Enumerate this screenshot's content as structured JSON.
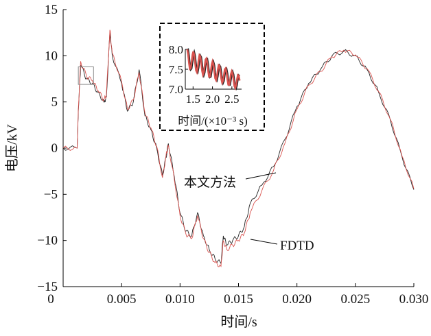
{
  "chart_data": {
    "type": "line",
    "xlabel": "时间/s",
    "ylabel": "电压/kV",
    "xlim": [
      0,
      0.03
    ],
    "ylim": [
      -15,
      15
    ],
    "x_ticks": [
      "0",
      "0.005",
      "0.010",
      "0.015",
      "0.020",
      "0.025",
      "0.030"
    ],
    "y_ticks": [
      "15",
      "10",
      "5",
      "0",
      "−5",
      "−10",
      "−15"
    ],
    "colors": {
      "series_a": "#222222",
      "series_b": "#d9534f",
      "axis": "#000000"
    },
    "series": [
      {
        "name": "本文方法",
        "x": [
          0,
          0.0012,
          0.0013,
          0.0015,
          0.002,
          0.0025,
          0.003,
          0.0035,
          0.0037,
          0.004,
          0.0042,
          0.005,
          0.0055,
          0.006,
          0.0065,
          0.007,
          0.0075,
          0.008,
          0.0085,
          0.0088,
          0.009,
          0.0095,
          0.01,
          0.0105,
          0.011,
          0.0115,
          0.012,
          0.0125,
          0.013,
          0.0135,
          0.0137,
          0.014,
          0.0145,
          0.015,
          0.0155,
          0.016,
          0.017,
          0.018,
          0.019,
          0.02,
          0.021,
          0.022,
          0.023,
          0.024,
          0.025,
          0.026,
          0.027,
          0.028,
          0.029,
          0.03
        ],
        "values": [
          0,
          0,
          4.0,
          9.0,
          7.5,
          7.0,
          6.0,
          5.0,
          5.5,
          12.5,
          10.0,
          7.0,
          4.0,
          5.0,
          8.5,
          3.5,
          2.0,
          0.0,
          -3.0,
          -1.0,
          0.5,
          -3.0,
          -7.0,
          -9.0,
          -9.5,
          -7.0,
          -9.5,
          -11.0,
          -12.0,
          -12.5,
          -9.5,
          -10.5,
          -10.0,
          -9.5,
          -8.5,
          -6.0,
          -4.0,
          -2.0,
          1.0,
          4.5,
          7.0,
          8.5,
          10.0,
          10.5,
          10.0,
          8.5,
          6.0,
          3.0,
          -1.0,
          -4.5
        ]
      },
      {
        "name": "FDTD",
        "x": [
          0,
          0.0012,
          0.0013,
          0.0015,
          0.002,
          0.0025,
          0.003,
          0.0035,
          0.0037,
          0.004,
          0.0042,
          0.005,
          0.0055,
          0.006,
          0.0065,
          0.007,
          0.0075,
          0.008,
          0.0085,
          0.0088,
          0.009,
          0.0095,
          0.01,
          0.0105,
          0.011,
          0.0115,
          0.012,
          0.0125,
          0.013,
          0.0135,
          0.0137,
          0.014,
          0.0145,
          0.015,
          0.0155,
          0.016,
          0.017,
          0.018,
          0.019,
          0.02,
          0.021,
          0.022,
          0.023,
          0.024,
          0.025,
          0.026,
          0.027,
          0.028,
          0.029,
          0.03
        ],
        "values": [
          0,
          0,
          4.2,
          9.4,
          7.8,
          7.3,
          6.2,
          5.2,
          5.8,
          12.8,
          10.3,
          7.2,
          4.2,
          5.2,
          8.2,
          3.8,
          2.2,
          0.2,
          -3.2,
          -0.8,
          0.3,
          -3.3,
          -7.3,
          -9.3,
          -9.8,
          -7.3,
          -9.8,
          -11.3,
          -12.4,
          -12.8,
          -10.0,
          -11.0,
          -10.5,
          -10.0,
          -9.2,
          -7.0,
          -4.6,
          -2.4,
          0.6,
          4.2,
          6.8,
          8.3,
          9.9,
          10.6,
          10.1,
          8.6,
          6.1,
          3.1,
          -0.9,
          -4.4
        ]
      }
    ],
    "annotations": {
      "method_label": "本文方法",
      "fdtd_label": "FDTD"
    },
    "inset": {
      "xlabel": "时间/(×10⁻³ s)",
      "x_ticks": [
        "1.5",
        "2.0",
        "2.5"
      ],
      "y_ticks": [
        "8.0",
        "7.5",
        "7.0"
      ],
      "xlim": [
        1.3,
        2.75
      ],
      "ylim": [
        7.0,
        8.0
      ]
    }
  }
}
